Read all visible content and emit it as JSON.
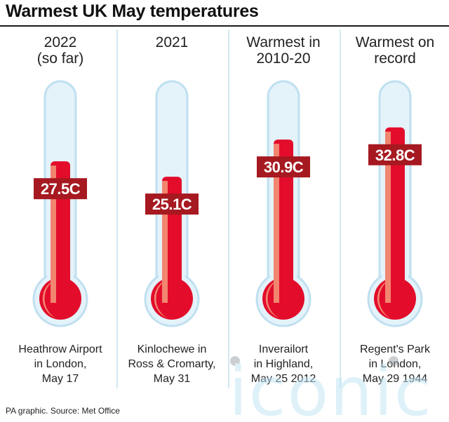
{
  "title": "Warmest UK May temperatures",
  "source": "PA graphic. Source: Met Office",
  "watermark_text": "iconic",
  "colors": {
    "tube_outline": "#bfe0f0",
    "tube_fill": "#e4f2fa",
    "mercury": "#e30c2b",
    "mercury_shadow": "#f2856f",
    "label_bg": "#a61920",
    "divider": "#d5e8f2"
  },
  "chart_data": {
    "type": "bar",
    "title": "Warmest UK May temperatures",
    "unit": "C",
    "categories": [
      [
        "2022",
        "(so far)"
      ],
      [
        "2021"
      ],
      [
        "Warmest in",
        "2010-20"
      ],
      [
        "Warmest on",
        "record"
      ]
    ],
    "values": [
      27.5,
      25.1,
      30.9,
      32.8
    ],
    "value_labels": [
      "27.5C",
      "25.1C",
      "30.9C",
      "32.8C"
    ],
    "locations": [
      [
        "Heathrow Airport",
        "in London,",
        "May 17"
      ],
      [
        "Kinlochewe in",
        "Ross & Cromarty,",
        "May 31"
      ],
      [
        "Inverailort",
        "in Highland,",
        "May 25 2012"
      ],
      [
        "Regent's Park",
        "in London,",
        "May 29 1944"
      ]
    ],
    "ylim": [
      10,
      40
    ]
  }
}
